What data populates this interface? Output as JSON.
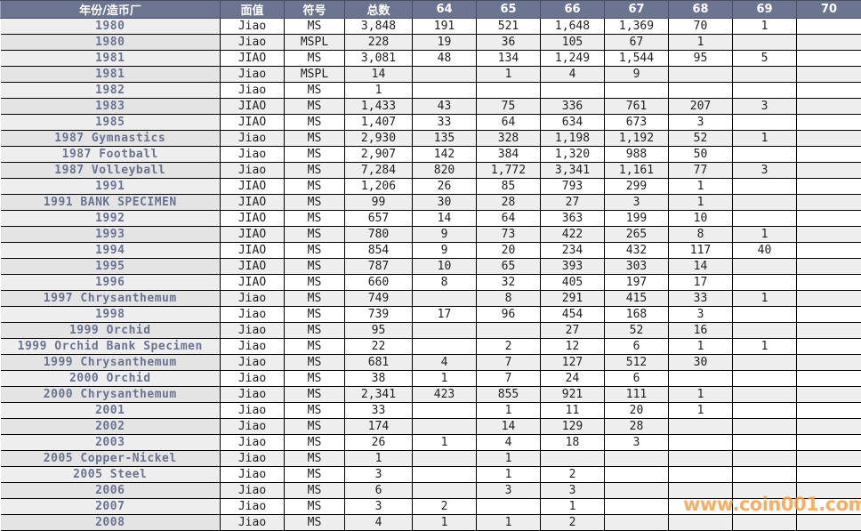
{
  "headers": [
    "年份/造币厂",
    "面值",
    "符号",
    "总数",
    "64",
    "65",
    "66",
    "67",
    "68",
    "69",
    "70"
  ],
  "rows": [
    [
      "1980",
      "Jiao",
      "MS",
      "3,848",
      "191",
      "521",
      "1,648",
      "1,369",
      "70",
      "1",
      ""
    ],
    [
      "1980",
      "Jiao",
      "MSPL",
      "228",
      "19",
      "36",
      "105",
      "67",
      "1",
      "",
      ""
    ],
    [
      "1981",
      "JIAO",
      "MS",
      "3,081",
      "48",
      "134",
      "1,249",
      "1,544",
      "95",
      "5",
      ""
    ],
    [
      "1981",
      "Jiao",
      "MSPL",
      "14",
      "",
      "1",
      "4",
      "9",
      "",
      "",
      ""
    ],
    [
      "1982",
      "Jiao",
      "MS",
      "1",
      "",
      "",
      "",
      "",
      "",
      "",
      ""
    ],
    [
      "1983",
      "JIAO",
      "MS",
      "1,433",
      "43",
      "75",
      "336",
      "761",
      "207",
      "3",
      ""
    ],
    [
      "1985",
      "JIAO",
      "MS",
      "1,407",
      "33",
      "64",
      "634",
      "673",
      "3",
      "",
      ""
    ],
    [
      "1987 Gymnastics",
      "Jiao",
      "MS",
      "2,930",
      "135",
      "328",
      "1,198",
      "1,192",
      "52",
      "1",
      ""
    ],
    [
      "1987 Football",
      "Jiao",
      "MS",
      "2,907",
      "142",
      "384",
      "1,320",
      "988",
      "50",
      "",
      ""
    ],
    [
      "1987 Volleyball",
      "Jiao",
      "MS",
      "7,284",
      "820",
      "1,772",
      "3,341",
      "1,161",
      "77",
      "3",
      ""
    ],
    [
      "1991",
      "JIAO",
      "MS",
      "1,206",
      "26",
      "85",
      "793",
      "299",
      "1",
      "",
      ""
    ],
    [
      "1991 BANK SPECIMEN",
      "JIAO",
      "MS",
      "99",
      "30",
      "28",
      "27",
      "3",
      "1",
      "",
      ""
    ],
    [
      "1992",
      "JIAO",
      "MS",
      "657",
      "14",
      "64",
      "363",
      "199",
      "10",
      "",
      ""
    ],
    [
      "1993",
      "JIAO",
      "MS",
      "780",
      "9",
      "73",
      "422",
      "265",
      "8",
      "1",
      ""
    ],
    [
      "1994",
      "JIAO",
      "MS",
      "854",
      "9",
      "20",
      "234",
      "432",
      "117",
      "40",
      ""
    ],
    [
      "1995",
      "JIAO",
      "MS",
      "787",
      "10",
      "65",
      "393",
      "303",
      "14",
      "",
      ""
    ],
    [
      "1996",
      "JIAO",
      "MS",
      "660",
      "8",
      "32",
      "405",
      "197",
      "17",
      "",
      ""
    ],
    [
      "1997 Chrysanthemum",
      "Jiao",
      "MS",
      "749",
      "",
      "8",
      "291",
      "415",
      "33",
      "1",
      ""
    ],
    [
      "1998",
      "Jiao",
      "MS",
      "739",
      "17",
      "96",
      "454",
      "168",
      "3",
      "",
      ""
    ],
    [
      "1999 Orchid",
      "Jiao",
      "MS",
      "95",
      "",
      "",
      "27",
      "52",
      "16",
      "",
      ""
    ],
    [
      "1999 Orchid Bank Specimen",
      "Jiao",
      "MS",
      "22",
      "",
      "2",
      "12",
      "6",
      "1",
      "1",
      ""
    ],
    [
      "1999 Chrysanthemum",
      "Jiao",
      "MS",
      "681",
      "4",
      "7",
      "127",
      "512",
      "30",
      "",
      ""
    ],
    [
      "2000 Orchid",
      "Jiao",
      "MS",
      "38",
      "1",
      "7",
      "24",
      "6",
      "",
      "",
      ""
    ],
    [
      "2000 Chrysanthemum",
      "Jiao",
      "MS",
      "2,341",
      "423",
      "855",
      "921",
      "111",
      "1",
      "",
      ""
    ],
    [
      "2001",
      "Jiao",
      "MS",
      "33",
      "",
      "1",
      "11",
      "20",
      "1",
      "",
      ""
    ],
    [
      "2002",
      "Jiao",
      "MS",
      "174",
      "",
      "14",
      "129",
      "28",
      "",
      "",
      ""
    ],
    [
      "2003",
      "Jiao",
      "MS",
      "26",
      "1",
      "4",
      "18",
      "3",
      "",
      "",
      ""
    ],
    [
      "2005 Copper-Nickel",
      "Jiao",
      "MS",
      "1",
      "",
      "1",
      "",
      "",
      "",
      "",
      ""
    ],
    [
      "2005 Steel",
      "Jiao",
      "MS",
      "3",
      "",
      "1",
      "2",
      "",
      "",
      "",
      ""
    ],
    [
      "2006",
      "Jiao",
      "MS",
      "6",
      "",
      "3",
      "3",
      "",
      "",
      "",
      ""
    ],
    [
      "2007",
      "Jiao",
      "MS",
      "3",
      "2",
      "",
      "1",
      "",
      "",
      "",
      ""
    ],
    [
      "2008",
      "Jiao",
      "MS",
      "4",
      "1",
      "1",
      "2",
      "",
      "",
      "",
      ""
    ]
  ],
  "watermark": "www.coin001.com",
  "colors": {
    "header_bg": "#6b7591",
    "name_text": "#6a7490",
    "watermark": "#f6a24e"
  }
}
